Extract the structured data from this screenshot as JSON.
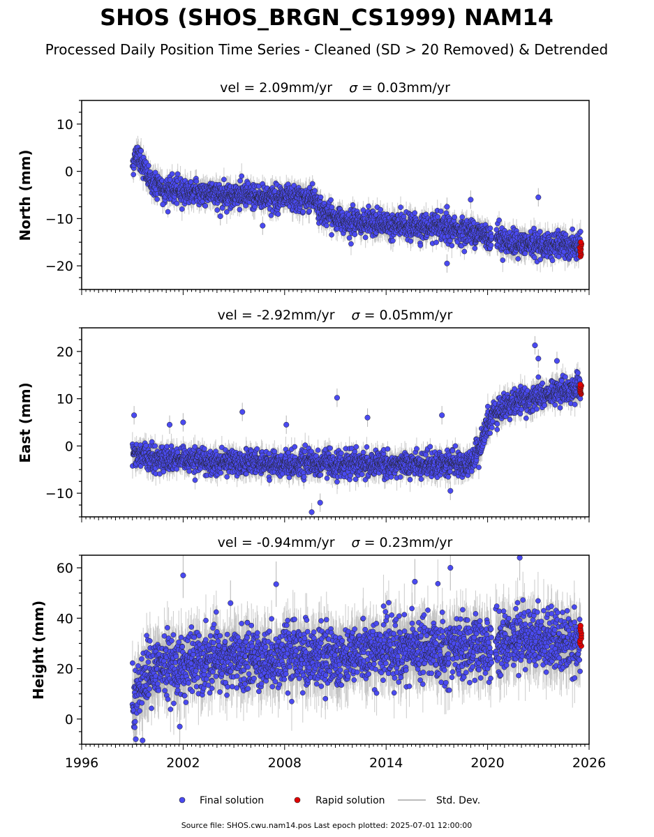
{
  "figure": {
    "title": "SHOS (SHOS_BRGN_CS1999) NAM14",
    "subtitle": "Processed Daily Position Time Series - Cleaned (SD > 20 Removed) & Detrended",
    "footer": "Source file: SHOS.cwu.nam14.pos  Last epoch plotted: 2025-07-01 12:00:00"
  },
  "legend": {
    "final": "Final solution",
    "rapid": "Rapid solution",
    "std": "Std. Dev."
  },
  "colors": {
    "final": "#4a4af0",
    "rapid": "#e00000",
    "std": "#bbbbbb",
    "edge": "#222222"
  },
  "chart_data": [
    {
      "type": "scatter",
      "title_vel": "vel = 2.09mm/yr",
      "title_sigma_sym": "σ",
      "title_sigma_rest": " = 0.03mm/yr",
      "ylabel": "North (mm)",
      "xlim": [
        1996,
        2026
      ],
      "ylim": [
        -25,
        15
      ],
      "yticks": [
        "10",
        "0",
        "−10",
        "−20"
      ],
      "ytick_values": [
        10,
        0,
        -10,
        -20
      ],
      "xticks": [],
      "final_trend": [
        [
          1999.0,
          1.5
        ],
        [
          1999.3,
          4.0
        ],
        [
          1999.6,
          1.5
        ],
        [
          2000.0,
          -2.0
        ],
        [
          2001.0,
          -4.0
        ],
        [
          2003.0,
          -4.5
        ],
        [
          2005.0,
          -5.0
        ],
        [
          2007.0,
          -5.5
        ],
        [
          2009.0,
          -6.0
        ],
        [
          2009.8,
          -5.5
        ],
        [
          2010.0,
          -8.0
        ],
        [
          2011.0,
          -10.0
        ],
        [
          2013.0,
          -11.0
        ],
        [
          2015.0,
          -11.5
        ],
        [
          2017.0,
          -12.0
        ],
        [
          2019.5,
          -13.0
        ],
        [
          2020.2,
          -14.0
        ],
        [
          2020.4,
          -13.5
        ],
        [
          2021.5,
          -15.5
        ],
        [
          2023.0,
          -15.5
        ],
        [
          2025.5,
          -16.0
        ]
      ],
      "gaps": [
        [
          2020.25,
          2020.5
        ]
      ],
      "scatter_sd": 1.3,
      "outliers": [
        [
          2017.6,
          -19.5
        ],
        [
          2023.0,
          -5.5
        ],
        [
          2017.6,
          -7.5
        ],
        [
          2019.0,
          -6.0
        ],
        [
          2006.7,
          -11.5
        ],
        [
          2000.8,
          -7.0
        ],
        [
          2004.2,
          -9.5
        ]
      ],
      "rapid": {
        "x": [
          2025.45,
          2025.55
        ],
        "y": [
          -18.0,
          -15.0
        ]
      }
    },
    {
      "type": "scatter",
      "title_vel": "vel = -2.92mm/yr",
      "title_sigma_sym": "σ",
      "title_sigma_rest": " = 0.05mm/yr",
      "ylabel": "East (mm)",
      "xlim": [
        1996,
        2026
      ],
      "ylim": [
        -15,
        25
      ],
      "yticks": [
        "20",
        "10",
        "0",
        "−10"
      ],
      "ytick_values": [
        20,
        10,
        0,
        -10
      ],
      "xticks": [],
      "final_trend": [
        [
          1999.0,
          -1.5
        ],
        [
          2001.0,
          -3.0
        ],
        [
          2005.0,
          -3.5
        ],
        [
          2010.0,
          -3.8
        ],
        [
          2015.0,
          -3.8
        ],
        [
          2019.0,
          -3.8
        ],
        [
          2019.5,
          -1.0
        ],
        [
          2020.0,
          5.0
        ],
        [
          2020.3,
          6.5
        ],
        [
          2021.0,
          8.5
        ],
        [
          2023.0,
          10.5
        ],
        [
          2025.5,
          12.5
        ]
      ],
      "gaps": [],
      "scatter_sd": 1.3,
      "outliers": [
        [
          2009.6,
          -14.0
        ],
        [
          2010.1,
          -12.0
        ],
        [
          2011.1,
          10.2
        ],
        [
          2012.9,
          6.0
        ],
        [
          2005.5,
          7.2
        ],
        [
          1999.1,
          6.5
        ],
        [
          2022.8,
          21.3
        ],
        [
          2023.0,
          18.5
        ],
        [
          2024.1,
          18.0
        ],
        [
          2017.3,
          6.5
        ],
        [
          2017.8,
          -9.5
        ],
        [
          2008.1,
          4.5
        ],
        [
          2001.2,
          4.5
        ],
        [
          2002.0,
          5.0
        ]
      ],
      "rapid": {
        "x": [
          2025.45,
          2025.55
        ],
        "y": [
          11.0,
          13.0
        ]
      }
    },
    {
      "type": "scatter",
      "title_vel": "vel = -0.94mm/yr",
      "title_sigma_sym": "σ",
      "title_sigma_rest": " = 0.23mm/yr",
      "ylabel": "Height (mm)",
      "xlim": [
        1996,
        2026
      ],
      "ylim": [
        -10,
        65
      ],
      "yticks": [
        "60",
        "40",
        "20",
        "0"
      ],
      "ytick_values": [
        60,
        40,
        20,
        0
      ],
      "xticks": [
        "1996",
        "2002",
        "2008",
        "2014",
        "2020",
        "2026"
      ],
      "xtick_values": [
        1996,
        2002,
        2008,
        2014,
        2020,
        2026
      ],
      "final_trend": [
        [
          1999.0,
          5.0
        ],
        [
          1999.5,
          15.0
        ],
        [
          2000.5,
          20.0
        ],
        [
          2003.0,
          22.0
        ],
        [
          2006.0,
          24.0
        ],
        [
          2010.0,
          25.0
        ],
        [
          2014.0,
          27.0
        ],
        [
          2017.0,
          28.0
        ],
        [
          2020.0,
          28.0
        ],
        [
          2022.0,
          33.0
        ],
        [
          2024.0,
          31.0
        ],
        [
          2025.5,
          30.0
        ]
      ],
      "gaps": [
        [
          2020.25,
          2020.45
        ]
      ],
      "scatter_sd": 6.0,
      "outliers": [
        [
          2002.0,
          57.0
        ],
        [
          2021.9,
          64.0
        ],
        [
          2017.8,
          60.0
        ],
        [
          2007.5,
          53.5
        ],
        [
          2015.7,
          54.5
        ],
        [
          1999.2,
          -8.0
        ],
        [
          1999.6,
          -8.5
        ],
        [
          2001.8,
          -3.0
        ],
        [
          2004.8,
          46.0
        ]
      ],
      "rapid": {
        "x": [
          2025.45,
          2025.55
        ],
        "y": [
          29.0,
          37.0
        ]
      }
    }
  ]
}
